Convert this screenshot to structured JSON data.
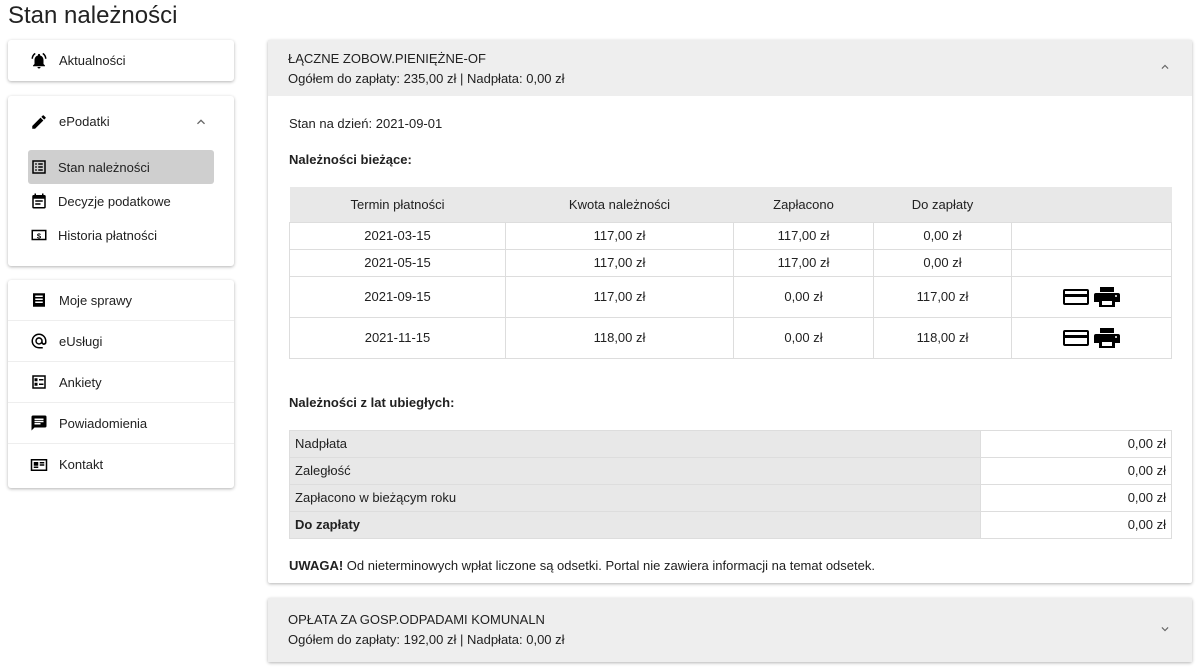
{
  "page_title": "Stan należności",
  "sidebar": {
    "top": {
      "label": "Aktualności",
      "icon": "bell-icon"
    },
    "group": {
      "label": "ePodatki",
      "icon": "pencil-icon",
      "expanded": true,
      "items": [
        {
          "label": "Stan należności",
          "icon": "list-icon",
          "selected": true
        },
        {
          "label": "Decyzje podatkowe",
          "icon": "calendar-icon"
        },
        {
          "label": "Historia płatności",
          "icon": "dollar-icon"
        }
      ]
    },
    "items": [
      {
        "label": "Moje sprawy",
        "icon": "document-icon"
      },
      {
        "label": "eUsługi",
        "icon": "at-icon"
      },
      {
        "label": "Ankiety",
        "icon": "survey-icon"
      },
      {
        "label": "Powiadomienia",
        "icon": "message-icon"
      },
      {
        "label": "Kontakt",
        "icon": "contact-card-icon"
      }
    ]
  },
  "panels": [
    {
      "title": "ŁĄCZNE ZOBOW.PIENIĘŻNE-OF",
      "summary": "Ogółem do zapłaty: 235,00 zł | Nadpłata: 0,00 zł",
      "expanded": true,
      "date_line": "Stan na dzień: 2021-09-01",
      "current_heading": "Należności bieżące:",
      "columns": [
        "Termin płatności",
        "Kwota należności",
        "Zapłacono",
        "Do zapłaty",
        ""
      ],
      "rows": [
        {
          "date": "2021-03-15",
          "amount": "117,00 zł",
          "paid": "117,00 zł",
          "due": "0,00 zł",
          "actions": false
        },
        {
          "date": "2021-05-15",
          "amount": "117,00 zł",
          "paid": "117,00 zł",
          "due": "0,00 zł",
          "actions": false
        },
        {
          "date": "2021-09-15",
          "amount": "117,00 zł",
          "paid": "0,00 zł",
          "due": "117,00 zł",
          "actions": true
        },
        {
          "date": "2021-11-15",
          "amount": "118,00 zł",
          "paid": "0,00 zł",
          "due": "118,00 zł",
          "actions": true
        }
      ],
      "past_heading": "Należności z lat ubiegłych:",
      "past": [
        {
          "label": "Nadpłata",
          "value": "0,00 zł"
        },
        {
          "label": "Zaległość",
          "value": "0,00 zł"
        },
        {
          "label": "Zapłacono w bieżącym roku",
          "value": "0,00 zł"
        },
        {
          "label": "Do zapłaty",
          "value": "0,00 zł",
          "bold": true
        }
      ],
      "note_bold": "UWAGA!",
      "note": " Od nieterminowych wpłat liczone są odsetki. Portal nie zawiera informacji na temat odsetek."
    },
    {
      "title": "OPŁATA ZA GOSP.ODPADAMI KOMUNALN",
      "summary": "Ogółem do zapłaty: 192,00 zł | Nadpłata: 0,00 zł",
      "expanded": false
    }
  ]
}
